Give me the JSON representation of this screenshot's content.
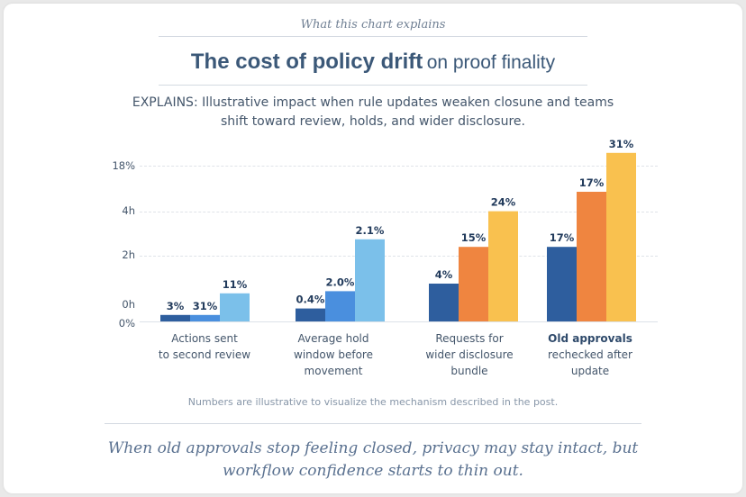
{
  "header": {
    "kicker": "What this chart explains",
    "title_bold": "The cost of policy drift",
    "title_light": "on proof finality",
    "subtitle_line1": "EXPLAINS: Illustrative impact when rule updates weaken closune and teams",
    "subtitle_line2": "shift toward review, holds, and wider disclosure."
  },
  "colors": {
    "dark": "#2e5e9e",
    "mid": "#4a8fde",
    "light": "#7bc0ea",
    "orange": "#ef8540",
    "yellow": "#f9c14f"
  },
  "chart_data": {
    "type": "bar",
    "y_tick_labels": [
      "18%",
      "4h",
      "2h",
      "0h",
      "0%"
    ],
    "grid": true,
    "groups": [
      {
        "label_lines": [
          "Actions sent",
          "to second review"
        ],
        "bold": false,
        "bars": [
          {
            "label": "3%",
            "color": "dark",
            "value": 0.12
          },
          {
            "label": "31%",
            "color": "mid",
            "value": 0.12
          },
          {
            "label": "11%",
            "color": "light",
            "value": 0.52
          }
        ]
      },
      {
        "label_lines": [
          "Average hold",
          "window before",
          "movement"
        ],
        "bold": false,
        "bars": [
          {
            "label": "0.4%",
            "color": "dark",
            "value": 0.24
          },
          {
            "label": "2.0%",
            "color": "mid",
            "value": 0.56
          },
          {
            "label": "2.1%",
            "color": "light",
            "value": 1.52
          }
        ]
      },
      {
        "label_lines": [
          "Requests for",
          "wider disclosure",
          "bundle"
        ],
        "bold": false,
        "bars": [
          {
            "label": "4%",
            "color": "dark",
            "value": 0.7
          },
          {
            "label": "15%",
            "color": "orange",
            "value": 1.38
          },
          {
            "label": "24%",
            "color": "yellow",
            "value": 2.04
          }
        ]
      },
      {
        "label_lines": [
          "Old approvals",
          "rechecked after",
          "update"
        ],
        "bold": true,
        "bars": [
          {
            "label": "17%",
            "color": "dark",
            "value": 1.38
          },
          {
            "label": "17%",
            "color": "orange",
            "value": 2.4
          },
          {
            "label": "31%",
            "color": "yellow",
            "value": 3.12
          }
        ]
      }
    ]
  },
  "footer": {
    "note": "Numbers are illustrative to visualize the mechanism described in the post.",
    "quote": "When old approvals stop feeling closed, privacy may stay intact, but workflow confidence starts to thin out."
  }
}
